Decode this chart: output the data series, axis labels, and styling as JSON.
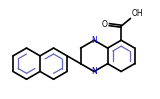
{
  "background": "#ffffff",
  "bond_color": "#000000",
  "aromatic_color": "#6666bb",
  "n_color": "#0000cc",
  "lw": 1.2,
  "alw": 0.9,
  "fig_width": 1.6,
  "fig_height": 0.99,
  "dpi": 100,
  "cooh_text": "O",
  "oh_text": "OH",
  "n_text": "N"
}
